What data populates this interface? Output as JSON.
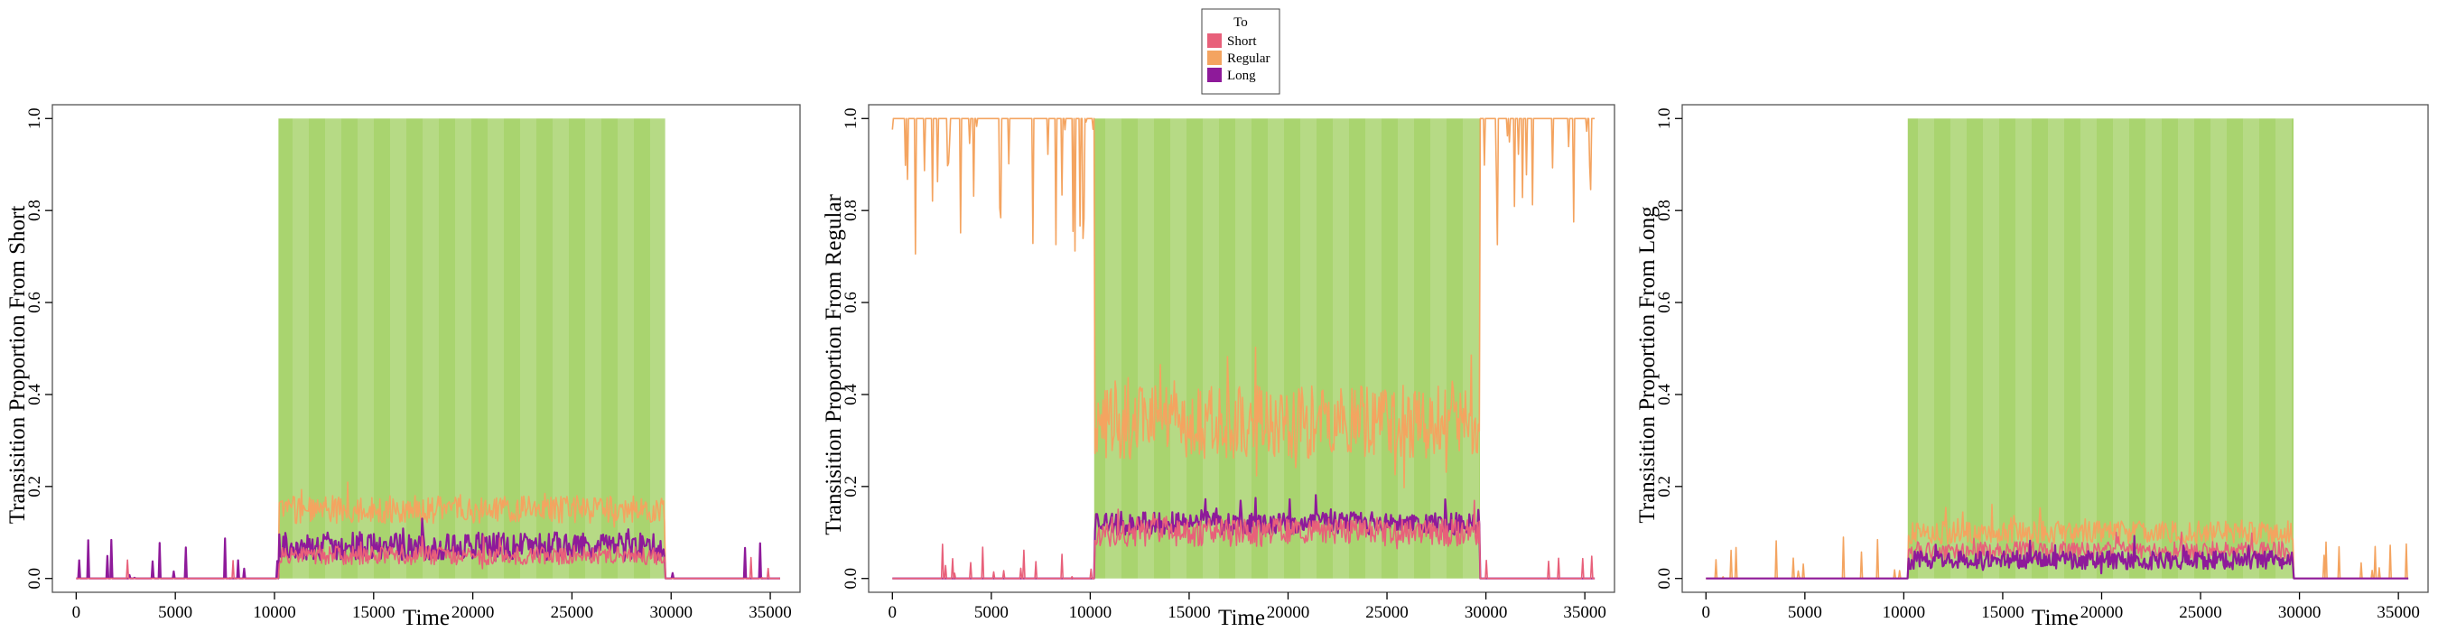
{
  "legend": {
    "title": "To",
    "items": [
      {
        "label": "Short",
        "color": "#E8607A"
      },
      {
        "label": "Regular",
        "color": "#F4A460"
      },
      {
        "label": "Long",
        "color": "#8E1A9A"
      }
    ]
  },
  "shading_color": "#A9D46F",
  "chart_data": [
    {
      "type": "line",
      "xlabel": "Time",
      "ylabel": "Transisition Proportion From Short",
      "xlim": [
        -1200,
        36500
      ],
      "ylim": [
        -0.03,
        1.03
      ],
      "xticks": [
        0,
        5000,
        10000,
        15000,
        20000,
        25000,
        30000,
        35000
      ],
      "yticks": [
        0.0,
        0.2,
        0.4,
        0.6,
        0.8,
        1.0
      ],
      "shaded_region": {
        "x_start": 10200,
        "x_end": 29700,
        "y_start": 0.0,
        "y_end": 1.0
      },
      "series": [
        {
          "name": "Regular",
          "color": "#F4A460",
          "baseline": 0.0,
          "outside_noise": 0.0,
          "outside_spike_rate": 0.0,
          "outside_spike_max": 0.0,
          "inside_mean": 0.15,
          "inside_noise": 0.03
        },
        {
          "name": "Long",
          "color": "#8E1A9A",
          "baseline": 0.0,
          "outside_noise": 0.0,
          "outside_spike_rate": 0.07,
          "outside_spike_max": 0.09,
          "inside_mean": 0.07,
          "inside_noise": 0.03
        },
        {
          "name": "Short",
          "color": "#E8607A",
          "baseline": 0.0,
          "outside_noise": 0.0,
          "outside_spike_rate": 0.03,
          "outside_spike_max": 0.05,
          "inside_mean": 0.05,
          "inside_noise": 0.02
        }
      ]
    },
    {
      "type": "line",
      "xlabel": "Time",
      "ylabel": "Transisition Proportion From Regular",
      "xlim": [
        -1200,
        36500
      ],
      "ylim": [
        -0.03,
        1.03
      ],
      "xticks": [
        0,
        5000,
        10000,
        15000,
        20000,
        25000,
        30000,
        35000
      ],
      "yticks": [
        0.0,
        0.2,
        0.4,
        0.6,
        0.8,
        1.0
      ],
      "shaded_region": {
        "x_start": 10200,
        "x_end": 29700,
        "y_start": 0.0,
        "y_end": 1.0
      },
      "series": [
        {
          "name": "Regular",
          "color": "#F4A460",
          "baseline": 1.0,
          "outside_noise": 0.0,
          "outside_spike_rate": 0.18,
          "outside_spike_max": -0.3,
          "inside_mean": 0.34,
          "inside_noise": 0.08
        },
        {
          "name": "Long",
          "color": "#8E1A9A",
          "baseline": 0.0,
          "outside_noise": 0.0,
          "outside_spike_rate": 0.0,
          "outside_spike_max": 0.0,
          "inside_mean": 0.12,
          "inside_noise": 0.025
        },
        {
          "name": "Short",
          "color": "#E8607A",
          "baseline": 0.0,
          "outside_noise": 0.0,
          "outside_spike_rate": 0.06,
          "outside_spike_max": 0.09,
          "inside_mean": 0.1,
          "inside_noise": 0.03
        }
      ]
    },
    {
      "type": "line",
      "xlabel": "Time",
      "ylabel": "Transisition Proportion From Long",
      "xlim": [
        -1200,
        36500
      ],
      "ylim": [
        -0.03,
        1.03
      ],
      "xticks": [
        0,
        5000,
        10000,
        15000,
        20000,
        25000,
        30000,
        35000
      ],
      "yticks": [
        0.0,
        0.2,
        0.4,
        0.6,
        0.8,
        1.0
      ],
      "shaded_region": {
        "x_start": 10200,
        "x_end": 29700,
        "y_start": 0.0,
        "y_end": 1.0
      },
      "series": [
        {
          "name": "Regular",
          "color": "#F4A460",
          "baseline": 0.0,
          "outside_noise": 0.0,
          "outside_spike_rate": 0.06,
          "outside_spike_max": 0.09,
          "inside_mean": 0.1,
          "inside_noise": 0.025
        },
        {
          "name": "Short",
          "color": "#E8607A",
          "baseline": 0.0,
          "outside_noise": 0.0,
          "outside_spike_rate": 0.0,
          "outside_spike_max": 0.0,
          "inside_mean": 0.06,
          "inside_noise": 0.02
        },
        {
          "name": "Long",
          "color": "#8E1A9A",
          "baseline": 0.0,
          "outside_noise": 0.0,
          "outside_spike_rate": 0.0,
          "outside_spike_max": 0.0,
          "inside_mean": 0.04,
          "inside_noise": 0.02
        }
      ]
    }
  ]
}
